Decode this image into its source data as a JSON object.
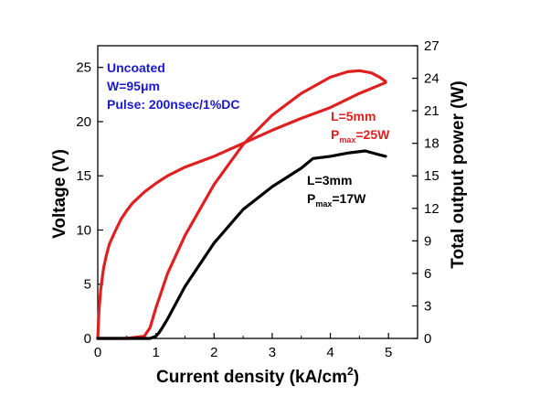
{
  "chart_data": {
    "type": "line",
    "title": "",
    "xlabel": "Current density (kA/cm",
    "xlabel_sup": "2",
    "xlabel_end": ")",
    "ylabel_left": "Voltage (V)",
    "ylabel_right": "Total output power (W)",
    "xlim": [
      0,
      5.5
    ],
    "ylim_left": [
      0,
      27
    ],
    "ylim_right": [
      0,
      27
    ],
    "x_ticks": [
      0,
      1,
      2,
      3,
      4,
      5
    ],
    "y_left_ticks": [
      0,
      5,
      10,
      15,
      20,
      25
    ],
    "y_right_ticks": [
      0,
      3,
      6,
      9,
      12,
      15,
      18,
      21,
      24,
      27
    ],
    "grid": false,
    "series": [
      {
        "key": "voltage",
        "axis": "left",
        "color": "#e02020",
        "x": [
          0,
          0.02,
          0.05,
          0.1,
          0.15,
          0.2,
          0.3,
          0.4,
          0.5,
          0.6,
          0.8,
          1.0,
          1.2,
          1.5,
          2.0,
          2.5,
          3.0,
          3.5,
          4.0,
          4.5,
          4.95
        ],
        "y": [
          0,
          2.5,
          4.5,
          6.5,
          7.7,
          8.7,
          9.9,
          11.0,
          11.8,
          12.5,
          13.5,
          14.3,
          15.0,
          15.8,
          16.8,
          18.0,
          19.2,
          20.3,
          21.3,
          22.6,
          23.6
        ]
      },
      {
        "key": "power-5mm",
        "axis": "right",
        "color": "#e02020",
        "x": [
          0,
          0.5,
          0.8,
          0.9,
          1.0,
          1.2,
          1.5,
          2.0,
          2.5,
          3.0,
          3.5,
          4.0,
          4.3,
          4.5,
          4.7,
          4.85,
          4.95
        ],
        "y": [
          0,
          0,
          0.2,
          1.0,
          2.8,
          6.0,
          9.5,
          14.2,
          17.9,
          20.6,
          22.6,
          24.1,
          24.6,
          24.7,
          24.5,
          24.1,
          23.7
        ]
      },
      {
        "key": "power-3mm",
        "axis": "right",
        "color": "#000000",
        "x": [
          0,
          0.5,
          0.9,
          1.0,
          1.05,
          1.1,
          1.2,
          1.5,
          2.0,
          2.5,
          3.0,
          3.5,
          3.7,
          4.0,
          4.3,
          4.6,
          4.8,
          4.95
        ],
        "y": [
          0,
          0,
          0,
          0.2,
          0.5,
          0.9,
          1.8,
          4.8,
          8.8,
          11.9,
          14.0,
          15.7,
          16.6,
          16.8,
          17.1,
          17.3,
          17.0,
          16.8
        ]
      }
    ],
    "annotations": {
      "info": [
        "Uncoated",
        "W=95μm",
        "Pulse: 200nsec/1%DC"
      ],
      "red_label_1": "L=5mm",
      "red_label_2_main": "P",
      "red_label_2_sub": "max",
      "red_label_2_end": "=25W",
      "black_label_1": "L=3mm",
      "black_label_2_main": "P",
      "black_label_2_sub": "max",
      "black_label_2_end": "=17W",
      "info_color": "#1a1acc",
      "red_color": "#e02020",
      "black_color": "#000000"
    }
  }
}
